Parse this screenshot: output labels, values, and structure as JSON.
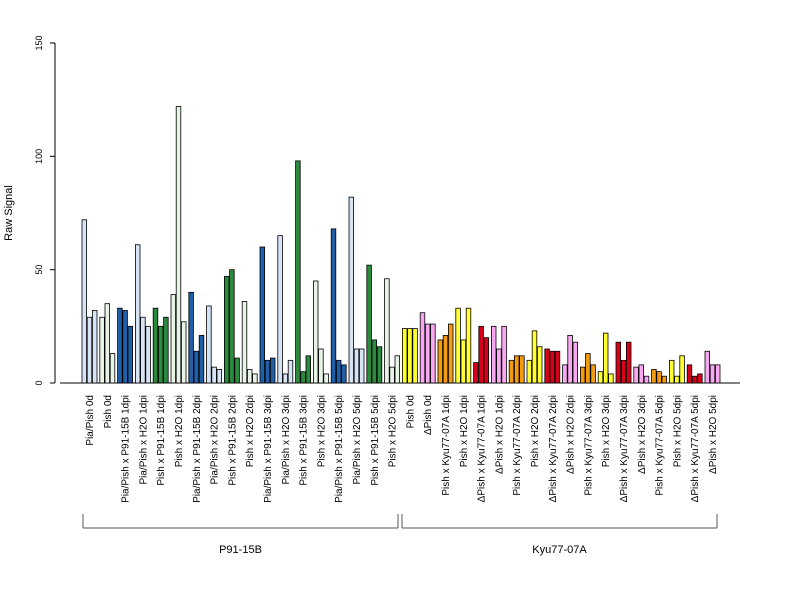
{
  "chart_data": {
    "type": "bar",
    "title": "",
    "xlabel": "",
    "ylabel": "Raw Signal",
    "ylim": [
      0,
      150
    ],
    "yticks": [
      0,
      50,
      100,
      150
    ],
    "grid": false,
    "legend": "none",
    "groups": [
      {
        "label": "P91-15B",
        "categories": [
          {
            "label": "Pia/Pish 0d",
            "color": "#d6e4f5",
            "values": [
              72,
              29,
              32
            ]
          },
          {
            "label": "Pish 0d",
            "color": "#e8f4e5",
            "values": [
              29,
              35,
              13
            ]
          },
          {
            "label": "Pia/Pish x P91-15B 1dpi",
            "color": "#1f5fa8",
            "values": [
              33,
              32,
              25
            ]
          },
          {
            "label": "Pia/Pish x H2O 1dpi",
            "color": "#d6e4f5",
            "values": [
              61,
              29,
              25
            ]
          },
          {
            "label": "Pish x P91-15B 1dpi",
            "color": "#2b8a3e",
            "values": [
              33,
              25,
              29
            ]
          },
          {
            "label": "Pish x H2O 1dpi",
            "color": "#e8f4e5",
            "values": [
              39,
              122,
              27
            ]
          },
          {
            "label": "Pia/Pish x P91-15B 2dpi",
            "color": "#1f5fa8",
            "values": [
              40,
              14,
              21
            ]
          },
          {
            "label": "Pia/Pish x H2O 2dpi",
            "color": "#d6e4f5",
            "values": [
              34,
              7,
              6
            ]
          },
          {
            "label": "Pish x P91-15B 2dpi",
            "color": "#2b8a3e",
            "values": [
              47,
              50,
              11
            ]
          },
          {
            "label": "Pish x H2O 2dpi",
            "color": "#e8f4e5",
            "values": [
              36,
              6,
              4
            ]
          },
          {
            "label": "Pia/Pish x P91-15B 3dpi",
            "color": "#1f5fa8",
            "values": [
              60,
              10,
              11
            ]
          },
          {
            "label": "Pia/Pish x H2O 3dpi",
            "color": "#d6e4f5",
            "values": [
              65,
              4,
              10
            ]
          },
          {
            "label": "Pish x P91-15B 3dpi",
            "color": "#2b8a3e",
            "values": [
              98,
              5,
              12
            ]
          },
          {
            "label": "Pish x H2O 3dpi",
            "color": "#e8f4e5",
            "values": [
              45,
              15,
              4
            ]
          },
          {
            "label": "Pia/Pish x P91-15B 5dpi",
            "color": "#1f5fa8",
            "values": [
              68,
              10,
              8
            ]
          },
          {
            "label": "Pia/Pish x H2O 5dpi",
            "color": "#d6e4f5",
            "values": [
              82,
              15,
              15
            ]
          },
          {
            "label": "Pish x P91-15B 5dpi",
            "color": "#2b8a3e",
            "values": [
              52,
              19,
              16
            ]
          },
          {
            "label": "Pish x H2O 5dpi",
            "color": "#e8f4e5",
            "values": [
              46,
              7,
              12
            ]
          }
        ]
      },
      {
        "label": "Kyu77-07A",
        "categories": [
          {
            "label": "Pish 0d",
            "color": "#ffff33",
            "values": [
              24,
              24,
              24
            ]
          },
          {
            "label": "ΔPish 0d",
            "color": "#f7a8f0",
            "values": [
              31,
              26,
              26
            ]
          },
          {
            "label": "Pish x Kyu77-07A 1dpi",
            "color": "#f39c12",
            "values": [
              19,
              21,
              26
            ]
          },
          {
            "label": "Pish x H2O 1dpi",
            "color": "#ffff33",
            "values": [
              33,
              19,
              33
            ]
          },
          {
            "label": "ΔPish x Kyu77-07A 1dpi",
            "color": "#d7001b",
            "values": [
              9,
              25,
              20
            ]
          },
          {
            "label": "ΔPish x H2O 1dpi",
            "color": "#f7a8f0",
            "values": [
              25,
              15,
              25
            ]
          },
          {
            "label": "Pish x Kyu77-07A 2dpi",
            "color": "#f39c12",
            "values": [
              10,
              12,
              12
            ]
          },
          {
            "label": "Pish x H2O 2dpi",
            "color": "#ffff33",
            "values": [
              10,
              23,
              16
            ]
          },
          {
            "label": "ΔPish x Kyu77-07A 2dpi",
            "color": "#d7001b",
            "values": [
              15,
              14,
              14
            ]
          },
          {
            "label": "ΔPish x H2O 2dpi",
            "color": "#f7a8f0",
            "values": [
              8,
              21,
              18
            ]
          },
          {
            "label": "Pish x Kyu77-07A 3dpi",
            "color": "#f39c12",
            "values": [
              7,
              13,
              8
            ]
          },
          {
            "label": "Pish x H2O 3dpi",
            "color": "#ffff33",
            "values": [
              5,
              22,
              4
            ]
          },
          {
            "label": "ΔPish x Kyu77-07A 3dpi",
            "color": "#d7001b",
            "values": [
              18,
              10,
              18
            ]
          },
          {
            "label": "ΔPish x H2O 3dpi",
            "color": "#f7a8f0",
            "values": [
              7,
              8,
              3
            ]
          },
          {
            "label": "Pish x Kyu77-07A 5dpi",
            "color": "#f39c12",
            "values": [
              6,
              5,
              3
            ]
          },
          {
            "label": "Pish x H2O 5dpi",
            "color": "#ffff33",
            "values": [
              10,
              3,
              12
            ]
          },
          {
            "label": "ΔPish x Kyu77-07A 5dpi",
            "color": "#d7001b",
            "values": [
              8,
              3,
              4
            ]
          },
          {
            "label": "ΔPish x H2O 5dpi",
            "color": "#f7a8f0",
            "values": [
              14,
              8,
              8
            ]
          }
        ]
      }
    ]
  }
}
